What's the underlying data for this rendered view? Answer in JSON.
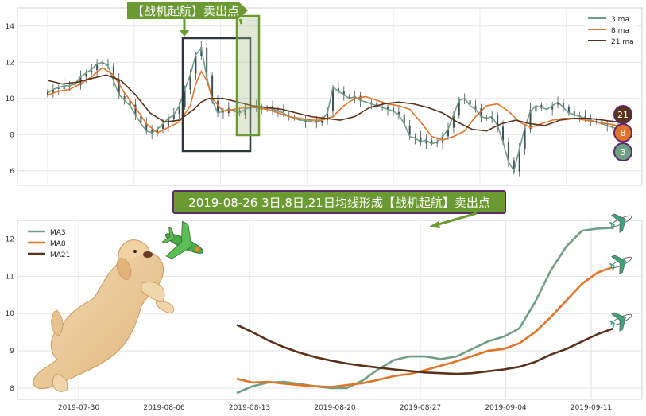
{
  "chart_data": [
    {
      "type": "line",
      "title": "",
      "xlabel": "",
      "ylabel": "",
      "ylim": [
        5.2,
        15
      ],
      "yticks": [
        6,
        8,
        10,
        12,
        14
      ],
      "grid": true,
      "legend_position": "top-right",
      "candlestick_color": "#3d4f5c",
      "annotation": "【战机起航】卖出点",
      "series": [
        {
          "name": "3 ma",
          "color": "#6f9e84",
          "x": [
            0,
            3,
            6,
            9,
            12,
            15,
            18,
            21,
            24,
            27,
            30,
            33,
            36,
            39,
            42,
            45,
            48,
            51,
            54,
            57,
            60,
            63,
            66,
            69,
            72,
            75,
            78,
            81,
            84,
            87,
            90,
            93,
            96,
            99,
            102,
            105,
            108,
            111,
            114,
            117,
            120,
            123,
            126,
            129,
            132,
            135,
            138,
            141,
            144,
            147,
            150,
            153,
            156,
            159,
            162,
            165,
            168,
            171,
            174,
            177,
            180,
            183,
            186,
            189,
            192,
            195,
            198,
            201,
            204,
            207,
            210,
            213,
            216,
            219,
            222,
            225,
            228,
            231,
            234,
            237,
            240,
            243,
            246,
            249,
            252,
            255,
            258,
            261,
            264,
            267,
            270,
            273,
            276,
            279,
            282,
            285,
            288,
            291,
            294,
            297,
            300,
            303,
            306,
            309,
            312
          ],
          "y": [
            10.3,
            10.5,
            10.6,
            10.7,
            10.7,
            10.8,
            11.2,
            11.4,
            11.6,
            11.9,
            12.0,
            11.8,
            11.0,
            10.2,
            9.9,
            9.6,
            9.1,
            8.6,
            8.2,
            8.1,
            8.3,
            8.6,
            8.9,
            9.1,
            9.6,
            10.5,
            11.3,
            12.4,
            12.8,
            11.2,
            9.9,
            9.2,
            9.3,
            9.4,
            9.3,
            9.2,
            9.4,
            9.5,
            9.5,
            9.4,
            9.5,
            9.4,
            9.3,
            9.2,
            9.0,
            8.9,
            8.8,
            8.8,
            8.7,
            8.7,
            8.8,
            9.2,
            10.6,
            10.4,
            10.2,
            10.0,
            10.1,
            9.9,
            9.8,
            9.7,
            9.6,
            9.5,
            9.4,
            9.3,
            9.1,
            8.6,
            7.9,
            7.8,
            7.6,
            7.7,
            7.5,
            7.6,
            7.9,
            8.3,
            9.1,
            9.9,
            10.0,
            9.6,
            9.4,
            9.0,
            8.9,
            9.0,
            8.5,
            7.6,
            6.5,
            6.0,
            7.2,
            8.4,
            9.3,
            9.6,
            9.5,
            9.4,
            9.6,
            9.8,
            9.5,
            9.2,
            9.1,
            9.0,
            8.9,
            8.8,
            8.7,
            8.6,
            8.5,
            8.4,
            8.3
          ]
        },
        {
          "name": "8 ma",
          "color": "#e0742a",
          "x": [
            0,
            6,
            12,
            18,
            24,
            30,
            36,
            42,
            48,
            54,
            60,
            66,
            72,
            78,
            81,
            84,
            87,
            90,
            96,
            102,
            108,
            114,
            120,
            126,
            132,
            138,
            144,
            150,
            156,
            162,
            168,
            174,
            180,
            186,
            192,
            198,
            204,
            210,
            216,
            222,
            228,
            234,
            240,
            246,
            252,
            258,
            264,
            270,
            276,
            282,
            288,
            294,
            300,
            306,
            312
          ],
          "y": [
            10.2,
            10.4,
            10.5,
            10.8,
            11.2,
            11.7,
            11.3,
            10.3,
            9.5,
            8.6,
            8.1,
            8.4,
            8.7,
            9.6,
            10.8,
            11.5,
            11.0,
            10.0,
            9.3,
            9.4,
            9.5,
            9.5,
            9.4,
            9.2,
            9.0,
            8.9,
            8.8,
            8.8,
            9.0,
            9.6,
            10.0,
            10.1,
            9.9,
            9.7,
            9.6,
            9.4,
            8.7,
            7.9,
            7.7,
            7.9,
            8.2,
            9.0,
            9.6,
            9.7,
            9.3,
            8.7,
            8.4,
            8.6,
            8.8,
            8.9,
            8.9,
            8.8,
            8.7,
            8.6,
            8.5
          ]
        },
        {
          "name": "21 ma",
          "color": "#5a3219",
          "x": [
            0,
            8,
            16,
            24,
            32,
            40,
            48,
            56,
            64,
            72,
            80,
            84,
            88,
            96,
            104,
            112,
            120,
            128,
            136,
            144,
            152,
            160,
            168,
            176,
            184,
            192,
            200,
            208,
            216,
            224,
            232,
            240,
            248,
            256,
            264,
            272,
            280,
            288,
            296,
            304,
            312
          ],
          "y": [
            11.0,
            10.8,
            10.9,
            11.1,
            11.3,
            11.0,
            10.2,
            9.2,
            8.7,
            8.8,
            9.4,
            9.8,
            10.0,
            10.0,
            9.8,
            9.6,
            9.5,
            9.4,
            9.2,
            9.0,
            8.9,
            8.8,
            9.0,
            9.5,
            9.7,
            9.8,
            9.7,
            9.5,
            9.2,
            8.7,
            8.3,
            8.2,
            8.6,
            8.8,
            8.6,
            8.5,
            8.8,
            8.9,
            8.9,
            8.8,
            8.7
          ]
        }
      ],
      "end_badges": [
        {
          "label": "21",
          "color": "#5a3219"
        },
        {
          "label": "8",
          "color": "#e0742a"
        },
        {
          "label": "3",
          "color": "#6f9e84"
        }
      ]
    },
    {
      "type": "line",
      "title": "2019-08-26 3日,8日,21日均线形成【战机起航】卖出点",
      "xlabel": "",
      "ylabel": "",
      "ylim": [
        7.7,
        12.5
      ],
      "yticks": [
        8,
        9,
        10,
        11,
        12
      ],
      "grid": true,
      "legend_position": "top-left",
      "categories": [
        "2019-07-30",
        "2019-08-06",
        "2019-08-13",
        "2019-08-20",
        "2019-08-27",
        "2019-09-04",
        "2019-09-11"
      ],
      "series": [
        {
          "name": "MA3",
          "color": "#6f9e84",
          "x": [
            0,
            1,
            2,
            3,
            4,
            5,
            6,
            7,
            8,
            9,
            10,
            11,
            12,
            13,
            14,
            15,
            16,
            17,
            18,
            19,
            20,
            21,
            22,
            23,
            24
          ],
          "y": [
            7.87,
            8.05,
            8.15,
            8.17,
            8.11,
            8.05,
            8.0,
            8.0,
            8.2,
            8.5,
            8.75,
            8.85,
            8.85,
            8.78,
            8.85,
            9.05,
            9.25,
            9.38,
            9.6,
            10.3,
            11.15,
            11.8,
            12.22,
            12.28,
            12.3
          ]
        },
        {
          "name": "MA8",
          "color": "#e0742a",
          "x": [
            0,
            1,
            2,
            3,
            4,
            5,
            6,
            7,
            8,
            9,
            10,
            11,
            12,
            13,
            14,
            15,
            16,
            17,
            18,
            19,
            20,
            21,
            22,
            23,
            24
          ],
          "y": [
            8.25,
            8.15,
            8.17,
            8.12,
            8.08,
            8.05,
            8.03,
            8.08,
            8.13,
            8.22,
            8.32,
            8.38,
            8.48,
            8.6,
            8.72,
            8.86,
            9.0,
            9.05,
            9.2,
            9.5,
            9.9,
            10.35,
            10.8,
            11.1,
            11.25
          ]
        },
        {
          "name": "MA21",
          "color": "#5a3219",
          "x": [
            0,
            1,
            2,
            3,
            4,
            5,
            6,
            7,
            8,
            9,
            10,
            11,
            12,
            13,
            14,
            15,
            16,
            17,
            18,
            19,
            20,
            21,
            22,
            23,
            24
          ],
          "y": [
            9.7,
            9.5,
            9.28,
            9.1,
            8.95,
            8.83,
            8.74,
            8.66,
            8.6,
            8.55,
            8.5,
            8.46,
            8.42,
            8.4,
            8.38,
            8.4,
            8.45,
            8.5,
            8.57,
            8.7,
            8.9,
            9.05,
            9.25,
            9.45,
            9.6
          ]
        }
      ]
    }
  ]
}
